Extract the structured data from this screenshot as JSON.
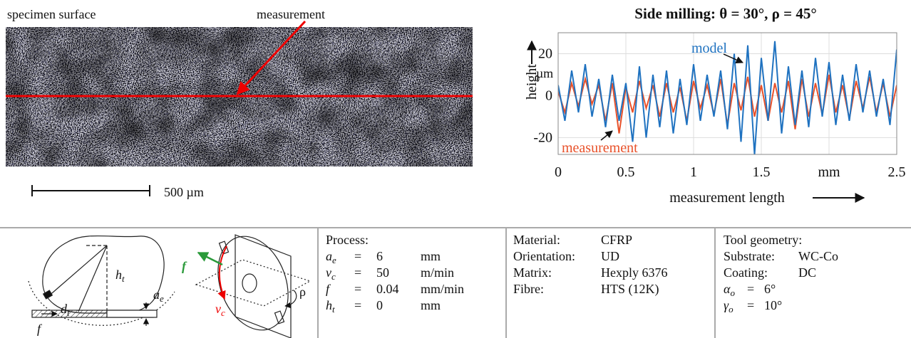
{
  "photo": {
    "label_left": "specimen surface",
    "label_arrow": "measurement",
    "scale_bar": "500 µm"
  },
  "chart_data": {
    "type": "line",
    "title": "Side milling: θ = 30°, ρ = 45°",
    "y_label": "height",
    "y_unit": "µm",
    "x_label": "measurement length",
    "x": [
      0,
      0.05,
      0.1,
      0.15,
      0.2,
      0.25,
      0.3,
      0.35,
      0.4,
      0.45,
      0.5,
      0.55,
      0.6,
      0.65,
      0.7,
      0.75,
      0.8,
      0.85,
      0.9,
      0.95,
      1,
      1.05,
      1.1,
      1.15,
      1.2,
      1.25,
      1.3,
      1.35,
      1.4,
      1.45,
      1.5,
      1.55,
      1.6,
      1.65,
      1.7,
      1.75,
      1.8,
      1.85,
      1.9,
      1.95,
      2,
      2.05,
      2.1,
      2.15,
      2.2,
      2.25,
      2.3,
      2.35,
      2.4,
      2.45,
      2.5
    ],
    "series": [
      {
        "name": "measurement",
        "color": "#e8512a",
        "values": [
          2,
          -8,
          6,
          -5,
          8,
          -4,
          5,
          -12,
          6,
          -18,
          4,
          -8,
          7,
          -6,
          5,
          -10,
          6,
          -8,
          4,
          -12,
          7,
          -6,
          5,
          -9,
          8,
          -14,
          6,
          -7,
          9,
          -10,
          5,
          -12,
          6,
          -8,
          7,
          -16,
          8,
          -10,
          6,
          -9,
          10,
          -8,
          5,
          -11,
          7,
          -6,
          9,
          -8,
          6,
          -10,
          5
        ]
      },
      {
        "name": "model",
        "color": "#1f72c0",
        "values": [
          5,
          -12,
          12,
          -8,
          15,
          -10,
          8,
          -15,
          10,
          -12,
          6,
          -22,
          14,
          -20,
          10,
          -15,
          12,
          -18,
          8,
          -14,
          15,
          -12,
          10,
          -10,
          12,
          -16,
          20,
          -22,
          24,
          -28,
          18,
          -12,
          26,
          -18,
          14,
          -14,
          12,
          -15,
          18,
          -10,
          16,
          -14,
          10,
          -12,
          15,
          -8,
          12,
          -10,
          8,
          -14,
          22
        ]
      }
    ],
    "xlim": [
      0,
      2.5
    ],
    "ylim": [
      -28,
      30
    ],
    "xticks": [
      0,
      0.5,
      1,
      1.5,
      {
        "value": 2,
        "label": "mm"
      },
      2.5
    ],
    "yticks": [
      -20,
      0,
      20
    ],
    "grid": true
  },
  "diagram_left": {
    "d": {
      "base": "d",
      "sub": "t"
    },
    "h": {
      "base": "h",
      "sub": "t"
    },
    "a": {
      "base": "a",
      "sub": "e"
    },
    "f": "f"
  },
  "diagram_right": {
    "f": "f",
    "v": {
      "base": "v",
      "sub": "c"
    },
    "rho": "ρ"
  },
  "process": {
    "title": "Process:",
    "rows": [
      [
        {
          "base": "a",
          "sub": "e"
        },
        "=",
        "6",
        "mm"
      ],
      [
        {
          "base": "v",
          "sub": "c"
        },
        "=",
        "50",
        "m/min"
      ],
      [
        {
          "base": "f"
        },
        "=",
        "0.04",
        "mm/min"
      ],
      [
        {
          "base": "h",
          "sub": "t"
        },
        "=",
        "0",
        "mm"
      ]
    ]
  },
  "material": [
    [
      "Material:",
      "CFRP"
    ],
    [
      "Orientation:",
      "UD"
    ],
    [
      "Matrix:",
      "Hexply 6376"
    ],
    [
      "Fibre:",
      "HTS (12K)"
    ]
  ],
  "tool": {
    "title": "Tool geometry:",
    "rows": [
      [
        "Substrate:",
        "WC-Co"
      ],
      [
        "Coating:",
        "DC"
      ]
    ],
    "angles": [
      [
        {
          "base": "α",
          "sub": "o"
        },
        "=",
        "6°"
      ],
      [
        {
          "base": "γ",
          "sub": "o"
        },
        "=",
        "10°"
      ]
    ]
  }
}
